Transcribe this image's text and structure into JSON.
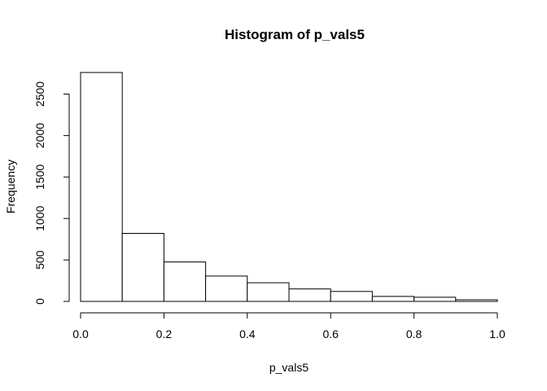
{
  "chart_data": {
    "type": "bar",
    "title": "Histogram of p_vals5",
    "xlabel": "p_vals5",
    "ylabel": "Frequency",
    "bins": [
      {
        "from": 0.0,
        "to": 0.1,
        "value": 2760
      },
      {
        "from": 0.1,
        "to": 0.2,
        "value": 820
      },
      {
        "from": 0.2,
        "to": 0.3,
        "value": 475
      },
      {
        "from": 0.3,
        "to": 0.4,
        "value": 305
      },
      {
        "from": 0.4,
        "to": 0.5,
        "value": 225
      },
      {
        "from": 0.5,
        "to": 0.6,
        "value": 150
      },
      {
        "from": 0.6,
        "to": 0.7,
        "value": 120
      },
      {
        "from": 0.7,
        "to": 0.8,
        "value": 60
      },
      {
        "from": 0.8,
        "to": 0.9,
        "value": 50
      },
      {
        "from": 0.9,
        "to": 1.0,
        "value": 20
      }
    ],
    "xlim": [
      0.0,
      1.0
    ],
    "ylim": [
      0,
      2760
    ],
    "xticks": [
      "0.0",
      "0.2",
      "0.4",
      "0.6",
      "0.8",
      "1.0"
    ],
    "xtick_values": [
      0.0,
      0.2,
      0.4,
      0.6,
      0.8,
      1.0
    ],
    "yticks": [
      "0",
      "500",
      "1000",
      "1500",
      "2000",
      "2500"
    ],
    "ytick_values": [
      0,
      500,
      1000,
      1500,
      2000,
      2500
    ],
    "grid": false,
    "legend": "none",
    "bar_fill": "#ffffff",
    "bar_stroke": "#000000"
  }
}
